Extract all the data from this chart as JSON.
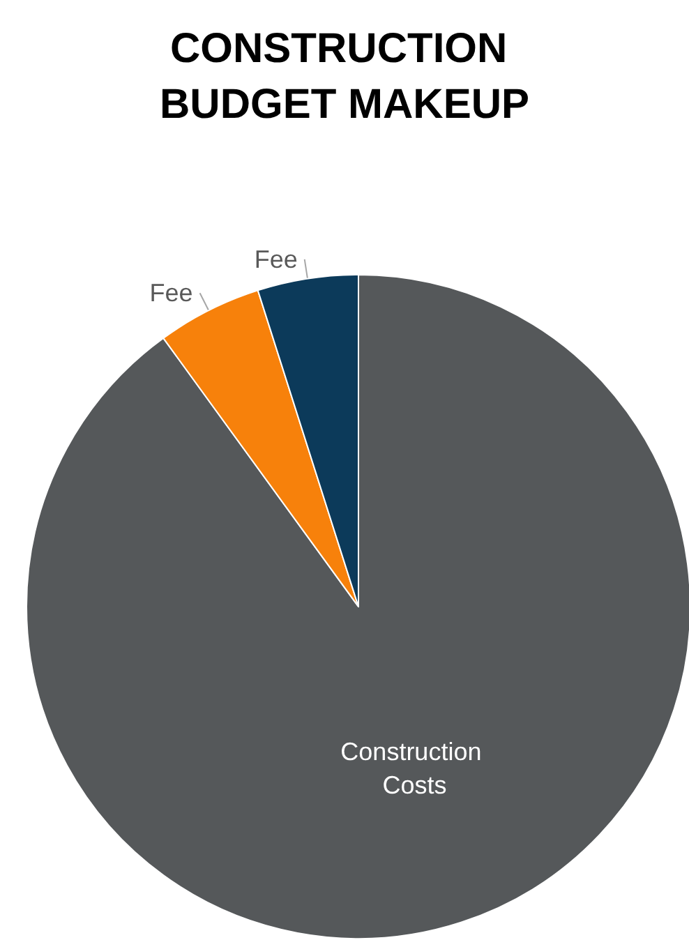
{
  "chart_data": {
    "type": "pie",
    "title": "CONSTRUCTION BUDGET MAKEUP",
    "categories": [
      "Construction Costs",
      "Fee",
      "Fee"
    ],
    "values": [
      90,
      5.1,
      4.9
    ],
    "colors": [
      "#55585a",
      "#f7810b",
      "#0c3a5a"
    ],
    "legend": false
  }
}
